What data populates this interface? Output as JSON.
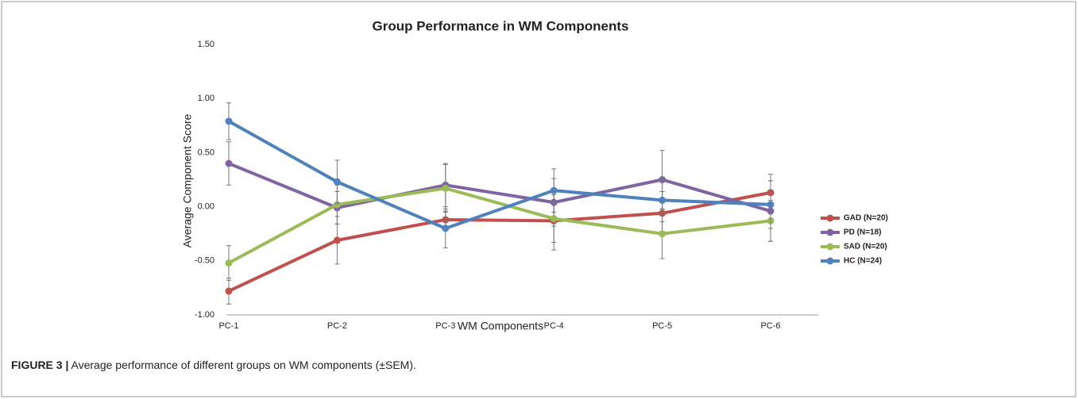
{
  "chart_data": {
    "type": "line",
    "title": "Group Performance in WM Components",
    "x_label": "WM Components",
    "y_label": "Average Component Score",
    "categories": [
      "PC-1",
      "PC-2",
      "PC-3",
      "PC-4",
      "PC-5",
      "PC-6"
    ],
    "ylim": [
      -1,
      1.5
    ],
    "yticks": [
      {
        "value": -1,
        "label": "-1.00"
      },
      {
        "value": -0.5,
        "label": "-0.50"
      },
      {
        "value": 0,
        "label": "0.00"
      },
      {
        "value": 0.5,
        "label": "0.50"
      },
      {
        "value": 1,
        "label": "1.00"
      },
      {
        "value": 1.5,
        "label": "1.50"
      }
    ],
    "legend": "right",
    "series": [
      {
        "name": "GAD (N=20)",
        "color": "#c0504d",
        "values": [
          -0.78,
          -0.31,
          -0.12,
          -0.13,
          -0.06,
          0.13
        ],
        "errors": [
          0.12,
          0.22,
          0.08,
          0.27,
          0.2,
          0.17
        ]
      },
      {
        "name": "PD (N=18)",
        "color": "#8064a2",
        "values": [
          0.4,
          -0.01,
          0.2,
          0.04,
          0.25,
          -0.04
        ],
        "errors": [
          0.2,
          0.15,
          0.2,
          0.22,
          0.27,
          0.28
        ]
      },
      {
        "name": "SAD (N=20)",
        "color": "#9bbb59",
        "values": [
          -0.52,
          0.02,
          0.17,
          -0.11,
          -0.25,
          -0.13
        ],
        "errors": [
          0.16,
          0.18,
          0.22,
          0.22,
          0.23,
          0.19
        ]
      },
      {
        "name": "HC (N=24)",
        "color": "#4f81bd",
        "values": [
          0.79,
          0.23,
          -0.2,
          0.15,
          0.06,
          0.02
        ],
        "errors": [
          0.17,
          0.2,
          0.18,
          0.2,
          0.2,
          0.22
        ]
      }
    ]
  },
  "caption": {
    "label": "FIGURE 3 |",
    "text": "Average performance of different groups on WM components (±SEM)."
  }
}
